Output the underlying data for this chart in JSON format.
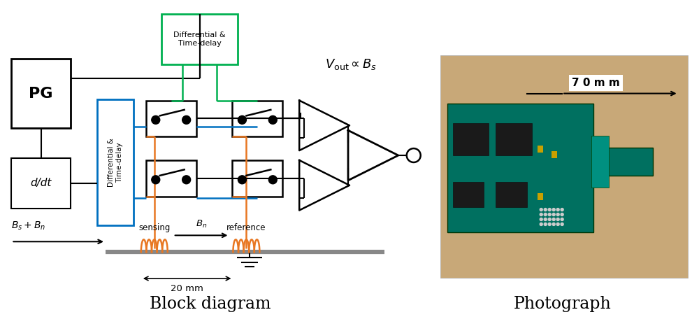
{
  "fig_width": 10.0,
  "fig_height": 4.53,
  "bg_color": "#ffffff",
  "black": "#000000",
  "orange": "#e87722",
  "blue": "#0070c0",
  "green": "#00b050",
  "gray": "#888888",
  "block_diagram_label": "Block diagram",
  "photograph_label": "Photograph",
  "vout_label": "$V_{\\mathrm{out}} \\propto B_s$",
  "sensing_label": "sensing",
  "reference_label": "reference",
  "bn_label": "$B_n$",
  "bsbn_label": "$B_s + B_n$",
  "mm20_label": "20 mm",
  "mm70_label": "7 0 m m"
}
